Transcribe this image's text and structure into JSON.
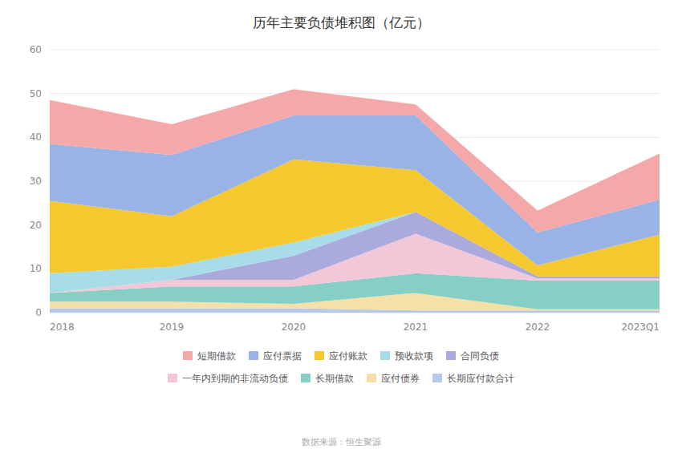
{
  "chart_data": {
    "type": "area",
    "stacked": true,
    "title": "历年主要负债堆积图（亿元）",
    "annotations": [
      "数据来源：恒生聚源"
    ],
    "categories": [
      "2018",
      "2019",
      "2020",
      "2021",
      "2022",
      "2023Q1"
    ],
    "series": [
      {
        "name": "长期应付款合计",
        "color": "#B8C9E8",
        "values": [
          1.0,
          1.0,
          1.0,
          0.5,
          0.5,
          0.5
        ]
      },
      {
        "name": "应付债券",
        "color": "#F5E0A8",
        "values": [
          1.5,
          1.5,
          1.0,
          4.0,
          0.3,
          0.3
        ]
      },
      {
        "name": "长期借款",
        "color": "#85CFC4",
        "values": [
          2.0,
          3.5,
          4.0,
          4.5,
          6.5,
          6.5
        ]
      },
      {
        "name": "一年内到期的非流动负债",
        "color": "#F2C8D8",
        "values": [
          0.0,
          1.5,
          1.5,
          9.0,
          0.5,
          0.5
        ]
      },
      {
        "name": "合同负债",
        "color": "#AAAADD",
        "values": [
          0.0,
          0.0,
          5.5,
          5.0,
          0.5,
          0.5
        ]
      },
      {
        "name": "预收款项",
        "color": "#A8DCE8",
        "values": [
          4.5,
          3.0,
          3.0,
          0.0,
          0.0,
          0.0
        ]
      },
      {
        "name": "应付账款",
        "color": "#F5C830",
        "values": [
          16.5,
          11.5,
          19.0,
          9.5,
          2.5,
          9.5
        ]
      },
      {
        "name": "应付票据",
        "color": "#99B3E6",
        "values": [
          13.0,
          14.0,
          10.0,
          12.5,
          7.5,
          8.0
        ]
      },
      {
        "name": "短期借款",
        "color": "#F4A8A8",
        "values": [
          10.0,
          7.0,
          6.0,
          2.5,
          5.0,
          10.5
        ]
      }
    ],
    "ylim": [
      0,
      60
    ],
    "yticks": [
      0,
      10,
      20,
      30,
      40,
      50,
      60
    ],
    "grid": true,
    "legend": "bottom"
  }
}
